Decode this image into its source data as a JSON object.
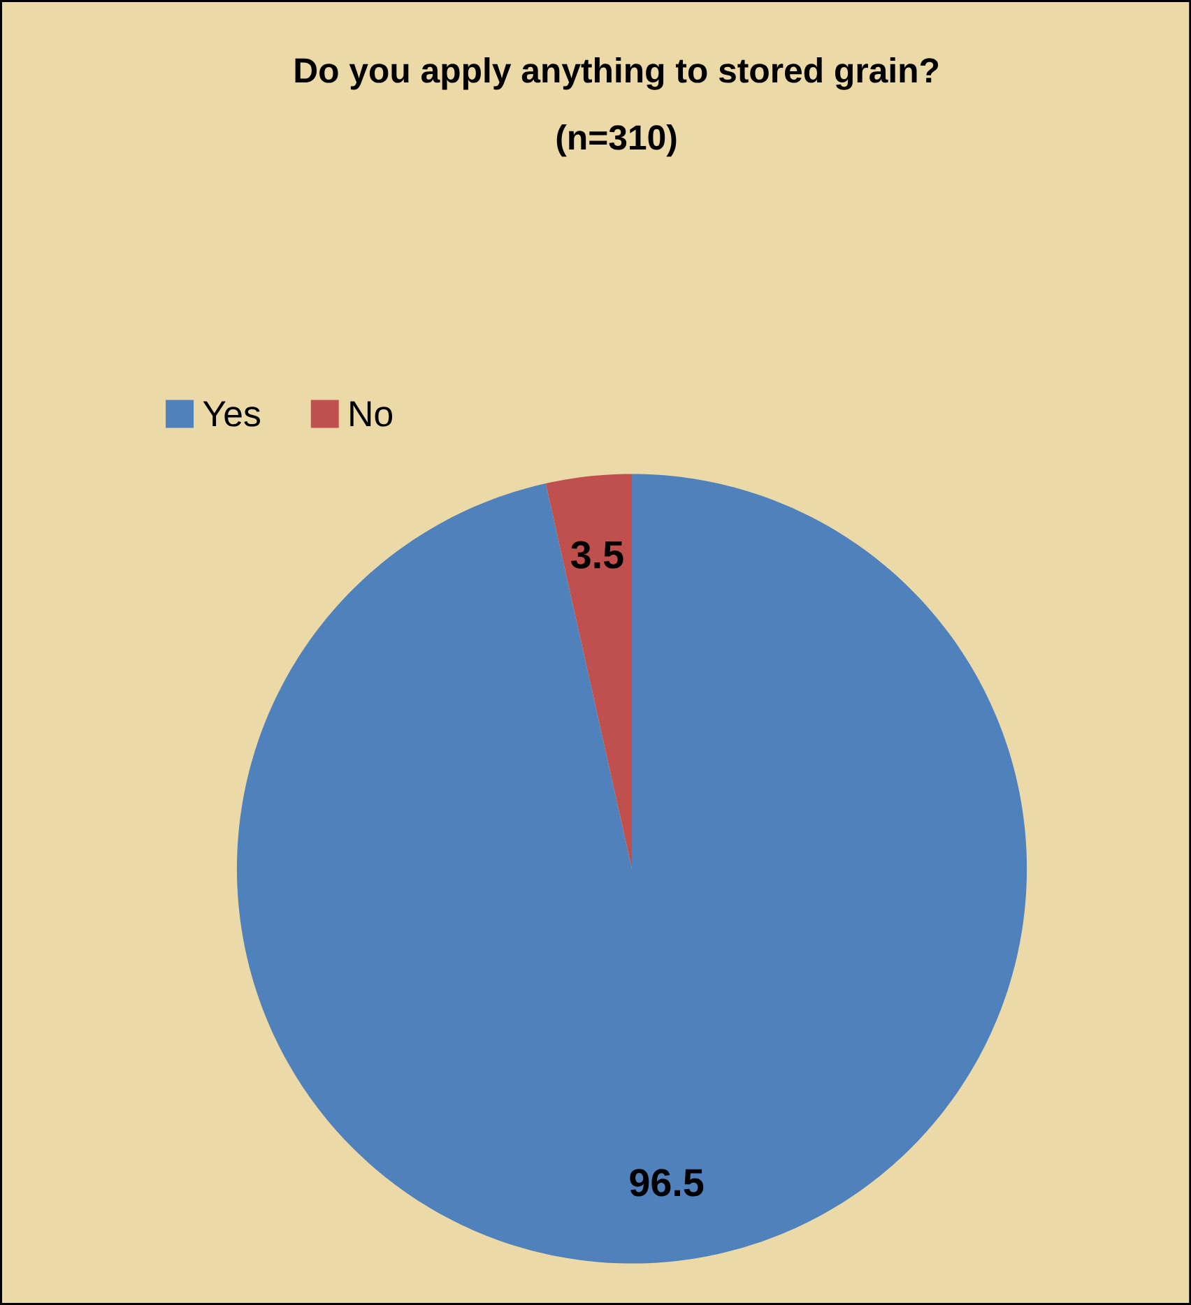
{
  "chart_data": {
    "type": "pie",
    "title": "Do you apply anything to stored grain?",
    "subtitle": "(n=310)",
    "categories": [
      "Yes",
      "No"
    ],
    "values": [
      96.5,
      3.5
    ],
    "colors": [
      "#4f81bd",
      "#c0504d"
    ],
    "data_labels": true,
    "legend": "top left"
  }
}
